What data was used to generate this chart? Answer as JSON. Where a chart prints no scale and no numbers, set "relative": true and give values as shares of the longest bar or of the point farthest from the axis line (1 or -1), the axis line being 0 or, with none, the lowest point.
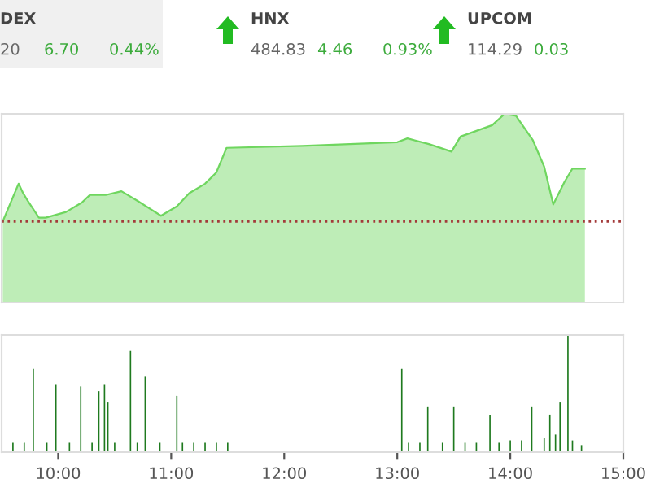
{
  "chart_data": [
    {
      "type": "other",
      "annotations": [
        "DEX",
        "20",
        "6.70",
        "0.44%",
        "HNX",
        "484.83",
        "4.46",
        "0.93%",
        "UPCOM",
        "114.29",
        "0.03"
      ]
    },
    {
      "type": "area",
      "relative": true,
      "tick_labels": false,
      "xlim": [
        9.5,
        15
      ],
      "grid": false,
      "x": [
        9.51,
        9.65,
        9.69,
        9.73,
        9.83,
        9.89,
        10.07,
        10.21,
        10.28,
        10.42,
        10.56,
        10.7,
        10.91,
        11.05,
        11.16,
        11.3,
        11.4,
        11.49,
        12.16,
        13.0,
        13.09,
        13.28,
        13.48,
        13.56,
        13.7,
        13.84,
        13.95,
        14.05,
        14.2,
        14.3,
        14.38,
        14.48,
        14.55,
        14.66
      ],
      "series": [
        {
          "color": "#6fd65f",
          "values": [
            0.43,
            0.63,
            0.58,
            0.54,
            0.45,
            0.45,
            0.48,
            0.53,
            0.57,
            0.57,
            0.59,
            0.54,
            0.46,
            0.51,
            0.58,
            0.63,
            0.69,
            0.82,
            0.83,
            0.85,
            0.87,
            0.84,
            0.8,
            0.88,
            0.91,
            0.94,
            1.0,
            0.99,
            0.86,
            0.72,
            0.52,
            0.64,
            0.71,
            0.71
          ]
        }
      ],
      "ref_lines": [
        {
          "axis": "y",
          "value": 0.43,
          "color": "#a33a3a",
          "line_style": "dotted"
        }
      ]
    },
    {
      "type": "bar",
      "relative": true,
      "tick_labels": "x",
      "xlim": [
        9.5,
        15
      ],
      "grid": false,
      "xticks": [
        {
          "value": 10,
          "label": "10:00"
        },
        {
          "value": 11,
          "label": "11:00"
        },
        {
          "value": 12,
          "label": "12:00"
        },
        {
          "value": 13,
          "label": "13:00"
        },
        {
          "value": 14,
          "label": "14:00"
        },
        {
          "value": 15,
          "label": "15:00"
        }
      ],
      "x": [
        9.6,
        9.7,
        9.78,
        9.9,
        9.98,
        10.1,
        10.2,
        10.3,
        10.36,
        10.41,
        10.44,
        10.5,
        10.64,
        10.7,
        10.77,
        10.9,
        11.05,
        11.1,
        11.2,
        11.3,
        11.4,
        11.5,
        13.04,
        13.1,
        13.2,
        13.27,
        13.4,
        13.5,
        13.6,
        13.7,
        13.82,
        13.9,
        14.0,
        14.1,
        14.19,
        14.3,
        14.35,
        14.4,
        14.44,
        14.51,
        14.55,
        14.63
      ],
      "series": [
        {
          "color": "#1f7a1f",
          "values": [
            0.08,
            0.08,
            0.71,
            0.08,
            0.58,
            0.08,
            0.56,
            0.08,
            0.52,
            0.58,
            0.43,
            0.08,
            0.87,
            0.08,
            0.65,
            0.08,
            0.48,
            0.08,
            0.08,
            0.08,
            0.08,
            0.08,
            0.71,
            0.08,
            0.08,
            0.39,
            0.08,
            0.39,
            0.08,
            0.08,
            0.32,
            0.08,
            0.1,
            0.1,
            0.39,
            0.12,
            0.32,
            0.15,
            0.43,
            1.0,
            0.1,
            0.06
          ]
        }
      ]
    }
  ]
}
